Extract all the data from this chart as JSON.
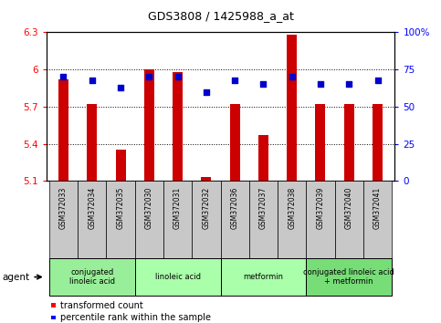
{
  "title": "GDS3808 / 1425988_a_at",
  "samples": [
    "GSM372033",
    "GSM372034",
    "GSM372035",
    "GSM372030",
    "GSM372031",
    "GSM372032",
    "GSM372036",
    "GSM372037",
    "GSM372038",
    "GSM372039",
    "GSM372040",
    "GSM372041"
  ],
  "transformed_count": [
    5.92,
    5.72,
    5.35,
    6.0,
    5.98,
    5.13,
    5.72,
    5.47,
    6.28,
    5.72,
    5.72,
    5.72
  ],
  "percentile_rank": [
    70,
    68,
    63,
    70,
    70,
    60,
    68,
    65,
    70,
    65,
    65,
    68
  ],
  "ylim_left": [
    5.1,
    6.3
  ],
  "ylim_right": [
    0,
    100
  ],
  "yticks_left": [
    5.1,
    5.4,
    5.7,
    6.0,
    6.3
  ],
  "yticks_right": [
    0,
    25,
    50,
    75,
    100
  ],
  "ytick_labels_left": [
    "5.1",
    "5.4",
    "5.7",
    "6",
    "6.3"
  ],
  "ytick_labels_right": [
    "0",
    "25",
    "50",
    "75",
    "100%"
  ],
  "bar_color": "#cc0000",
  "dot_color": "#0000cc",
  "agent_groups": [
    {
      "label": "conjugated\nlinoleic acid",
      "start": 0,
      "end": 3,
      "color": "#99ee99"
    },
    {
      "label": "linoleic acid",
      "start": 3,
      "end": 6,
      "color": "#aaffaa"
    },
    {
      "label": "metformin",
      "start": 6,
      "end": 9,
      "color": "#aaffaa"
    },
    {
      "label": "conjugated linoleic acid\n+ metformin",
      "start": 9,
      "end": 12,
      "color": "#77dd77"
    }
  ],
  "legend_bar_label": "transformed count",
  "legend_dot_label": "percentile rank within the sample",
  "agent_label": "agent",
  "dot_size": 18,
  "bar_bottom": 5.1,
  "bar_width": 0.35
}
